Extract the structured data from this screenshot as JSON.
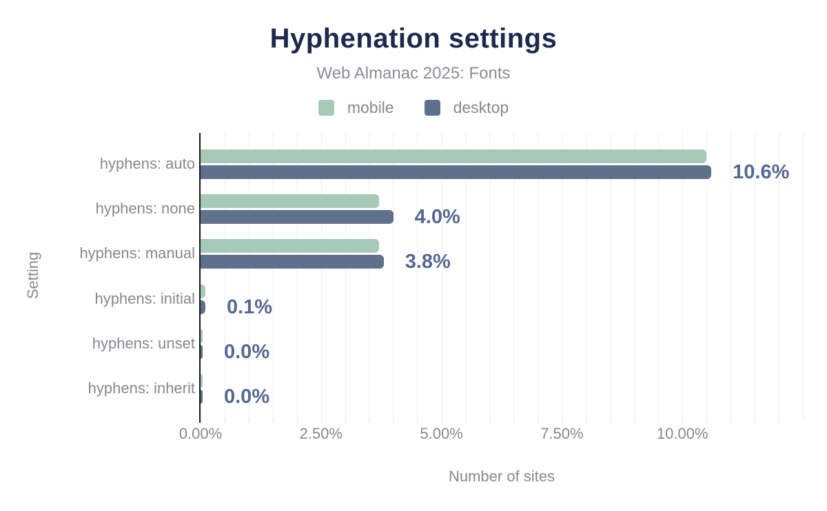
{
  "header": {
    "title": "Hyphenation settings",
    "subtitle": "Web Almanac 2025: Fonts"
  },
  "legend": {
    "items": [
      {
        "label": "mobile",
        "color": "#a6c9b8"
      },
      {
        "label": "desktop",
        "color": "#5f708d"
      }
    ]
  },
  "chart_data": {
    "type": "bar",
    "orientation": "horizontal",
    "title": "Hyphenation settings",
    "subtitle": "Web Almanac 2025: Fonts",
    "xlabel": "Number of sites",
    "ylabel": "Setting",
    "xlim": [
      0,
      12.5
    ],
    "grid": {
      "interval": 0.5,
      "on": true,
      "color": "#ededed"
    },
    "legend_position": "top",
    "categories": [
      "hyphens: auto",
      "hyphens: none",
      "hyphens: manual",
      "hyphens: initial",
      "hyphens: unset",
      "hyphens: inherit"
    ],
    "series": [
      {
        "name": "mobile",
        "color": "#a6c9b8",
        "values": [
          10.5,
          3.7,
          3.7,
          0.1,
          0.0,
          0.0
        ]
      },
      {
        "name": "desktop",
        "color": "#5f708d",
        "values": [
          10.6,
          4.0,
          3.8,
          0.1,
          0.0,
          0.0
        ]
      }
    ],
    "value_labels": [
      "10.6%",
      "4.0%",
      "3.8%",
      "0.1%",
      "0.0%",
      "0.0%"
    ],
    "x_ticks": [
      {
        "value": 0,
        "label": "0.00%"
      },
      {
        "value": 2.5,
        "label": "2.50%"
      },
      {
        "value": 5,
        "label": "5.00%"
      },
      {
        "value": 7.5,
        "label": "7.50%"
      },
      {
        "value": 10,
        "label": "10.00%"
      }
    ],
    "colors": {
      "title": "#1d2a4c",
      "muted_text": "#84898f",
      "value_label": "#55688e",
      "axis_line": "#1a1a1a",
      "gridline": "#ededed"
    }
  }
}
